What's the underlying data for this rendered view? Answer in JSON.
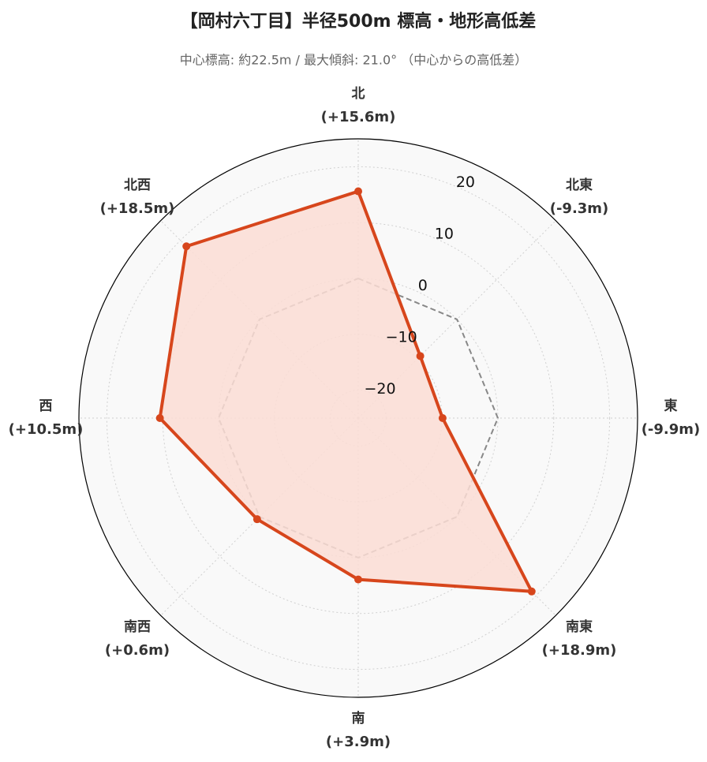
{
  "chart_data": {
    "type": "radar",
    "title": "【岡村六丁目】半径500m 標高・地形高低差",
    "subtitle": "中心標高: 約22.5m / 最大傾斜: 21.0° （中心からの高低差）",
    "categories": [
      "北",
      "北東",
      "東",
      "南東",
      "南",
      "南西",
      "西",
      "北西"
    ],
    "values": [
      15.6,
      -9.3,
      -9.9,
      18.9,
      3.9,
      0.6,
      10.5,
      18.5
    ],
    "value_labels": [
      "(+15.6m)",
      "(-9.3m)",
      "(-9.9m)",
      "(+18.9m)",
      "(+3.9m)",
      "(+0.6m)",
      "(+10.5m)",
      "(+18.5m)"
    ],
    "color": "#d7461c",
    "fill_color": "#fcddd5",
    "ylim": [
      -25,
      25
    ],
    "yticks": [
      {
        "value": -20,
        "label": "−20"
      },
      {
        "value": -10,
        "label": "−10"
      },
      0,
      10,
      20
    ],
    "reference_line": {
      "value": 0,
      "color": "#888888"
    },
    "grid": true
  }
}
